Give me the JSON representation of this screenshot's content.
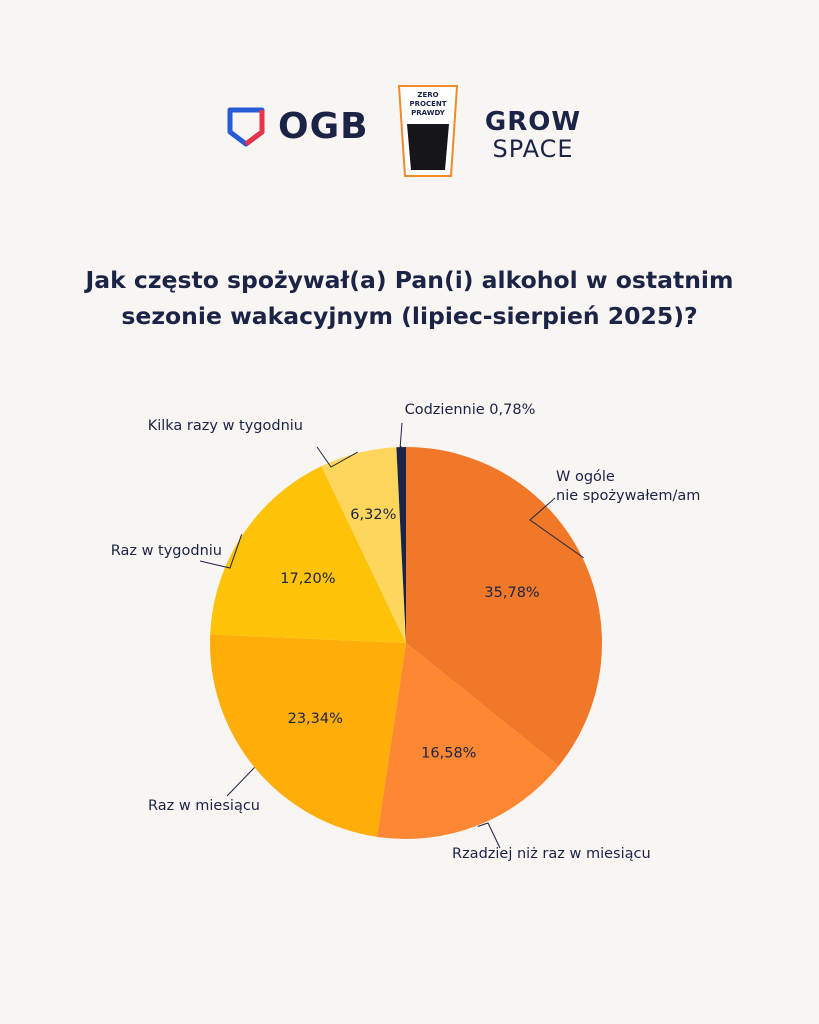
{
  "logos": {
    "ogb_text": "OGB",
    "zpp_lines": [
      "ZERO",
      "PROCENT",
      "PRAWDY"
    ],
    "grow_line1": "GROW",
    "grow_line2": "SPACE"
  },
  "colors": {
    "background": "#f9f5f2",
    "text": "#1b2447"
  },
  "chart_data": {
    "type": "pie",
    "title_lines": [
      "Jak często spożywał(a) Pan(i) alkohol w ostatnim",
      "sezonie wakacyjnym (lipiec-sierpień 2025)?"
    ],
    "slices": [
      {
        "label_lines": [
          "W ogóle",
          "nie spożywałem/am"
        ],
        "value": 35.78,
        "value_label": "35,78%",
        "color": "#f07828"
      },
      {
        "label_lines": [
          "Rzadziej niż raz w miesiącu"
        ],
        "value": 16.58,
        "value_label": "16,58%",
        "color": "#fd8732"
      },
      {
        "label_lines": [
          "Raz w miesiącu"
        ],
        "value": 23.34,
        "value_label": "23,34%",
        "color": "#ffad09"
      },
      {
        "label_lines": [
          "Raz w tygodniu"
        ],
        "value": 17.2,
        "value_label": "17,20%",
        "color": "#fec208"
      },
      {
        "label_lines": [
          "Kilka razy w tygodniu"
        ],
        "value": 6.32,
        "value_label": "6,32%",
        "color": "#ffd65c"
      },
      {
        "label_lines": [
          "Codziennie 0,78%"
        ],
        "value": 0.78,
        "value_label": "",
        "color": "#1b2447"
      }
    ]
  }
}
